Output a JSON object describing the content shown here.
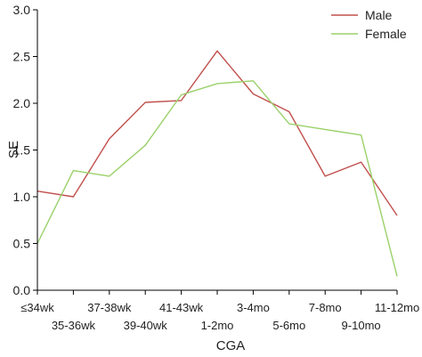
{
  "chart_data": {
    "type": "line",
    "categories": [
      "≤34wk",
      "35-36wk",
      "37-38wk",
      "39-40wk",
      "41-43wk",
      "1-2mo",
      "3-4mo",
      "5-6mo",
      "7-8mo",
      "9-10mo",
      "11-12mo"
    ],
    "series": [
      {
        "name": "Male",
        "color": "#c0504d",
        "values": [
          1.06,
          1.0,
          1.62,
          2.01,
          2.03,
          2.56,
          2.1,
          1.91,
          1.22,
          1.37,
          0.8
        ]
      },
      {
        "name": "Female",
        "color": "#9bd16a",
        "values": [
          0.5,
          1.28,
          1.22,
          1.55,
          2.09,
          2.21,
          2.24,
          1.78,
          1.72,
          1.66,
          0.15
        ]
      }
    ],
    "xlabel": "CGA",
    "ylabel": "SE",
    "ylim": [
      0.0,
      3.0
    ],
    "yticks": [
      "0.0",
      "0.5",
      "1.0",
      "1.5",
      "2.0",
      "2.5",
      "3.0"
    ],
    "legend_position": "top-right",
    "grid": false
  }
}
